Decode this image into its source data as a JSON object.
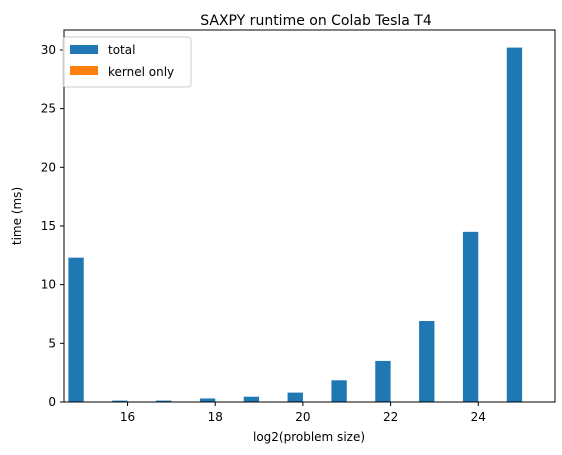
{
  "chart_data": {
    "type": "bar",
    "title": "SAXPY runtime on Colab Tesla T4",
    "xlabel": "log2(problem size)",
    "ylabel": "time (ms)",
    "x": [
      15,
      16,
      17,
      18,
      19,
      20,
      21,
      22,
      23,
      24,
      25
    ],
    "xlim": [
      14.55,
      25.75
    ],
    "ylim": [
      0,
      31.7
    ],
    "xticks": [
      16,
      18,
      20,
      22,
      24
    ],
    "yticks": [
      0,
      5,
      10,
      15,
      20,
      25,
      30
    ],
    "grid": false,
    "legend_position": "top-left",
    "series": [
      {
        "name": "total",
        "color": "#1f77b4",
        "values": [
          12.3,
          0.12,
          0.12,
          0.3,
          0.45,
          0.8,
          1.85,
          3.5,
          6.9,
          14.5,
          30.2
        ]
      },
      {
        "name": "kernel only",
        "color": "#ff7f0e",
        "values": [
          0,
          0,
          0,
          0,
          0,
          0,
          0,
          0,
          0,
          0,
          0
        ]
      }
    ]
  }
}
